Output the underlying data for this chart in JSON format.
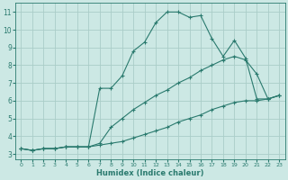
{
  "xlabel": "Humidex (Indice chaleur)",
  "xlim": [
    -0.5,
    23.5
  ],
  "ylim": [
    2.7,
    11.5
  ],
  "yticks": [
    3,
    4,
    5,
    6,
    7,
    8,
    9,
    10,
    11
  ],
  "xticks": [
    0,
    1,
    2,
    3,
    4,
    5,
    6,
    7,
    8,
    9,
    10,
    11,
    12,
    13,
    14,
    15,
    16,
    17,
    18,
    19,
    20,
    21,
    22,
    23
  ],
  "bg_color": "#cce8e4",
  "grid_color": "#aacdc8",
  "line_color": "#2a7a6e",
  "line1_x": [
    0,
    1,
    2,
    3,
    4,
    5,
    6,
    7,
    8,
    9,
    10,
    11,
    12,
    13,
    14,
    15,
    16,
    17,
    18,
    19,
    20,
    21,
    22,
    23
  ],
  "line1_y": [
    3.3,
    3.2,
    3.3,
    3.3,
    3.4,
    3.4,
    3.4,
    3.5,
    3.6,
    3.7,
    3.9,
    4.1,
    4.3,
    4.5,
    4.8,
    5.0,
    5.2,
    5.5,
    5.7,
    5.9,
    6.0,
    6.0,
    6.1,
    6.3
  ],
  "line2_x": [
    0,
    1,
    2,
    3,
    4,
    5,
    6,
    7,
    8,
    9,
    10,
    11,
    12,
    13,
    14,
    15,
    16,
    17,
    18,
    19,
    20,
    21,
    22,
    23
  ],
  "line2_y": [
    3.3,
    3.2,
    3.3,
    3.3,
    3.4,
    3.4,
    3.4,
    3.6,
    4.5,
    5.0,
    5.5,
    5.9,
    6.3,
    6.6,
    7.0,
    7.3,
    7.7,
    8.0,
    8.3,
    8.5,
    8.3,
    7.5,
    6.1,
    6.3
  ],
  "line3_x": [
    0,
    1,
    2,
    3,
    4,
    5,
    6,
    7,
    8,
    9,
    10,
    11,
    12,
    13,
    14,
    15,
    16,
    17,
    18,
    19,
    20,
    21,
    22,
    23
  ],
  "line3_y": [
    3.3,
    3.2,
    3.3,
    3.3,
    3.4,
    3.4,
    3.4,
    6.7,
    6.7,
    7.4,
    8.8,
    9.3,
    10.4,
    11.0,
    11.0,
    10.7,
    10.8,
    9.5,
    8.5,
    9.4,
    8.4,
    6.1,
    6.1,
    6.3
  ]
}
